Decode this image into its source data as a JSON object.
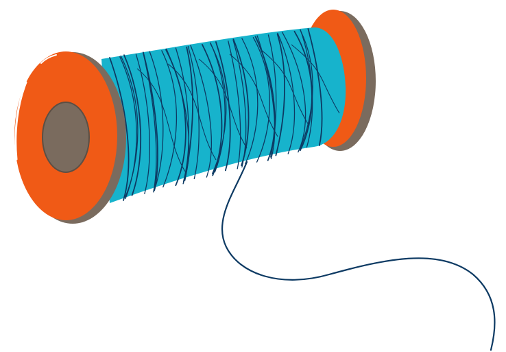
{
  "illustration": {
    "subject": "thread-spool",
    "colors": {
      "background": "#ffffff",
      "flange": "#f05a16",
      "flange_rim": "#7a6b5e",
      "flange_highlight": "#ffffff",
      "hub": "#7a6b5e",
      "hub_outline": "#5c4f44",
      "thread": "#17b3cc",
      "thread_lines": "#0d3a63",
      "loose_thread": "#0d3a63"
    }
  }
}
